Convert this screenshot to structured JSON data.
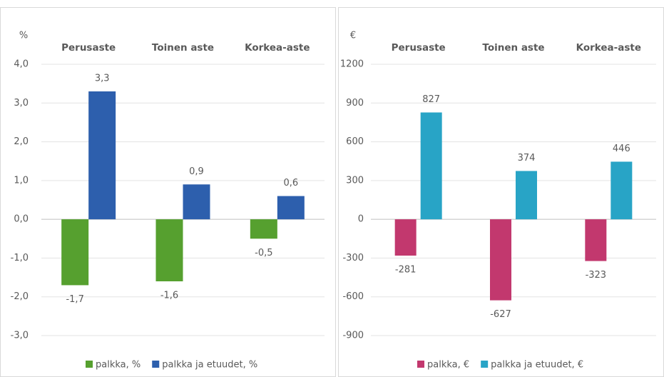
{
  "chart_data": [
    {
      "type": "bar",
      "y_label": "%",
      "categories": [
        "Perusaste",
        "Toinen aste",
        "Korkea-aste"
      ],
      "series": [
        {
          "name": "palkka, %",
          "color": "#56a02f",
          "values": [
            -1.7,
            -1.6,
            -0.5
          ],
          "value_labels": [
            "-1,7",
            "-1,6",
            "-0,5"
          ]
        },
        {
          "name": "palkka ja etuudet, %",
          "color": "#2d5fad",
          "values": [
            3.3,
            0.9,
            0.6
          ],
          "value_labels": [
            "3,3",
            "0,9",
            "0,6"
          ]
        }
      ],
      "ylim": [
        -3,
        4
      ],
      "yticks": [
        {
          "value": 4,
          "label": "4,0"
        },
        {
          "value": 3,
          "label": "3,0"
        },
        {
          "value": 2,
          "label": "2,0"
        },
        {
          "value": 1,
          "label": "1,0"
        },
        {
          "value": 0,
          "label": "0,0"
        },
        {
          "value": -1,
          "label": "-1,0"
        },
        {
          "value": -2,
          "label": "-2,0"
        },
        {
          "value": -3,
          "label": "-3,0"
        }
      ],
      "grid": true,
      "legend": "bottom"
    },
    {
      "type": "bar",
      "y_label": "€",
      "categories": [
        "Perusaste",
        "Toinen aste",
        "Korkea-aste"
      ],
      "series": [
        {
          "name": "palkka, €",
          "color": "#c2386e",
          "values": [
            -281,
            -627,
            -323
          ]
        },
        {
          "name": "palkka ja etuudet, €",
          "color": "#28a4c6",
          "values": [
            827,
            374,
            446
          ]
        }
      ],
      "ylim": [
        -900,
        1200
      ],
      "yticks": [
        1200,
        900,
        600,
        300,
        0,
        -300,
        -600,
        -900
      ],
      "grid": true,
      "legend": "bottom"
    }
  ]
}
